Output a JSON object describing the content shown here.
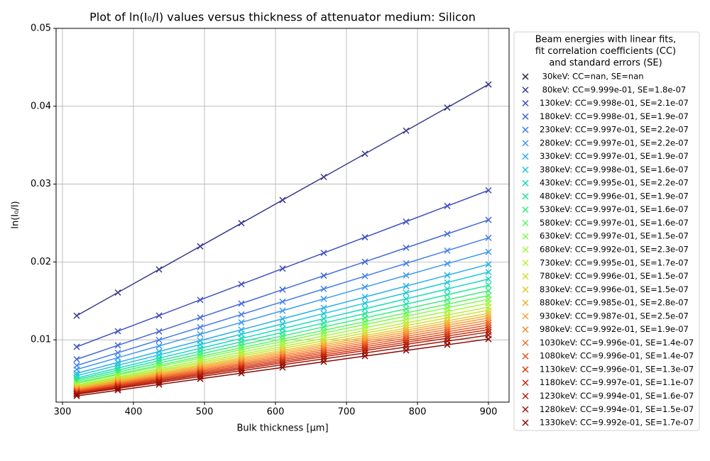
{
  "chart_data": {
    "type": "line",
    "title": "Plot of ln(I₀/I) values versus thickness of attenuator medium: Silicon",
    "xlabel": "Bulk thickness [μm]",
    "ylabel": "ln(I₀/I)",
    "legend_title": [
      "Beam energies with linear fits,",
      "fit correlation coefficients (CC)",
      "and standard errors (SE)"
    ],
    "legend": "outside-right",
    "grid": true,
    "xlim": [
      291,
      929
    ],
    "xticks": [
      300,
      400,
      500,
      600,
      700,
      800,
      900
    ],
    "ylim": [
      0.002,
      0.05
    ],
    "yticks": [
      0.01,
      0.02,
      0.03,
      0.04,
      0.05
    ],
    "x": [
      320,
      378,
      436,
      494,
      552,
      610,
      668,
      726,
      784,
      842,
      900
    ],
    "series": [
      {
        "name": " 30keV: CC=nan, SE=nan",
        "color": "#2d1e3e",
        "values": [
          null,
          null,
          null,
          null,
          null,
          null,
          null,
          null,
          null,
          null,
          null
        ]
      },
      {
        "name": " 80keV: CC=9.999e-01, SE=1.8e-07",
        "color": "#3a3a8c",
        "values": [
          0.0131,
          0.01607,
          0.01904,
          0.02201,
          0.02498,
          0.02795,
          0.03092,
          0.03389,
          0.03686,
          0.03983,
          0.0428
        ]
      },
      {
        "name": "130keV: CC=9.998e-01, SE=2.1e-07",
        "color": "#4050c0",
        "values": [
          0.0091,
          0.01111,
          0.01312,
          0.01513,
          0.01714,
          0.01915,
          0.02116,
          0.02317,
          0.02518,
          0.02719,
          0.0292
        ]
      },
      {
        "name": "180keV: CC=9.998e-01, SE=1.9e-07",
        "color": "#4468d8",
        "values": [
          0.0075,
          0.00929,
          0.01108,
          0.01287,
          0.01466,
          0.01645,
          0.01824,
          0.02003,
          0.02182,
          0.02361,
          0.0254
        ]
      },
      {
        "name": "230keV: CC=9.997e-01, SE=2.2e-07",
        "color": "#4680e8",
        "values": [
          0.0067,
          0.00834,
          0.00998,
          0.01162,
          0.01326,
          0.0149,
          0.01654,
          0.01818,
          0.01982,
          0.02146,
          0.0231
        ]
      },
      {
        "name": "280keV: CC=9.997e-01, SE=2.2e-07",
        "color": "#3e98f0",
        "values": [
          0.0062,
          0.00771,
          0.00922,
          0.01073,
          0.01224,
          0.01375,
          0.01526,
          0.01677,
          0.01828,
          0.01979,
          0.0213
        ]
      },
      {
        "name": "330keV: CC=9.997e-01, SE=1.9e-07",
        "color": "#28b0e8",
        "values": [
          0.0057,
          0.0071,
          0.0085,
          0.0099,
          0.0113,
          0.0127,
          0.0141,
          0.0155,
          0.0169,
          0.0183,
          0.0197
        ]
      },
      {
        "name": "380keV: CC=9.998e-01, SE=1.6e-07",
        "color": "#1ec8d8",
        "values": [
          0.0054,
          0.00673,
          0.00806,
          0.00939,
          0.01072,
          0.01205,
          0.01338,
          0.01471,
          0.01604,
          0.01737,
          0.0187
        ]
      },
      {
        "name": "430keV: CC=9.995e-01, SE=2.2e-07",
        "color": "#1ad8c0",
        "values": [
          0.0051,
          0.00637,
          0.00764,
          0.00891,
          0.01018,
          0.01145,
          0.01272,
          0.01399,
          0.01526,
          0.01653,
          0.0178
        ]
      },
      {
        "name": "480keV: CC=9.996e-01, SE=1.9e-07",
        "color": "#24e4a0",
        "values": [
          0.0049,
          0.00611,
          0.00732,
          0.00853,
          0.00974,
          0.01095,
          0.01216,
          0.01337,
          0.01458,
          0.01579,
          0.017
        ]
      },
      {
        "name": "530keV: CC=9.997e-01, SE=1.6e-07",
        "color": "#3cec80",
        "values": [
          0.0047,
          0.00586,
          0.00702,
          0.00818,
          0.00934,
          0.0105,
          0.01166,
          0.01282,
          0.01398,
          0.01514,
          0.0163
        ]
      },
      {
        "name": "580keV: CC=9.997e-01, SE=1.6e-07",
        "color": "#5cf464",
        "values": [
          0.0045,
          0.00562,
          0.00674,
          0.00786,
          0.00898,
          0.0101,
          0.01122,
          0.01234,
          0.01346,
          0.01458,
          0.0157
        ]
      },
      {
        "name": "630keV: CC=9.997e-01, SE=1.5e-07",
        "color": "#80fa4c",
        "values": [
          0.0044,
          0.00548,
          0.00656,
          0.00764,
          0.00872,
          0.0098,
          0.01088,
          0.01196,
          0.01304,
          0.01412,
          0.0152
        ]
      },
      {
        "name": "680keV: CC=9.992e-01, SE=2.3e-07",
        "color": "#a0f840",
        "values": [
          0.0042,
          0.00525,
          0.0063,
          0.00735,
          0.0084,
          0.00945,
          0.0105,
          0.01155,
          0.0126,
          0.01365,
          0.0147
        ]
      },
      {
        "name": "730keV: CC=9.995e-01, SE=1.7e-07",
        "color": "#bcee38",
        "values": [
          0.0041,
          0.00511,
          0.00612,
          0.00713,
          0.00814,
          0.00915,
          0.01016,
          0.01117,
          0.01218,
          0.01319,
          0.0142
        ]
      },
      {
        "name": "780keV: CC=9.996e-01, SE=1.5e-07",
        "color": "#d0e034",
        "values": [
          0.004,
          0.00498,
          0.00596,
          0.00694,
          0.00792,
          0.0089,
          0.00988,
          0.01086,
          0.01184,
          0.01282,
          0.0138
        ]
      },
      {
        "name": "830keV: CC=9.996e-01, SE=1.5e-07",
        "color": "#e4cc34",
        "values": [
          0.0039,
          0.00485,
          0.0058,
          0.00675,
          0.0077,
          0.00865,
          0.0096,
          0.01055,
          0.0115,
          0.01245,
          0.0134
        ]
      },
      {
        "name": "880keV: CC=9.985e-01, SE=2.8e-07",
        "color": "#f0b434",
        "values": [
          0.0038,
          0.00473,
          0.00566,
          0.00659,
          0.00752,
          0.00845,
          0.00938,
          0.01031,
          0.01124,
          0.01217,
          0.0131
        ]
      },
      {
        "name": "930keV: CC=9.987e-01, SE=2.5e-07",
        "color": "#f8a034",
        "values": [
          0.0037,
          0.00461,
          0.00552,
          0.00643,
          0.00734,
          0.00825,
          0.00916,
          0.01007,
          0.01098,
          0.01189,
          0.0128
        ]
      },
      {
        "name": "980keV: CC=9.992e-01, SE=1.9e-07",
        "color": "#f88a30",
        "values": [
          0.0036,
          0.00449,
          0.00538,
          0.00627,
          0.00716,
          0.00805,
          0.00894,
          0.00983,
          0.01072,
          0.01161,
          0.0125
        ]
      },
      {
        "name": "1030keV: CC=9.996e-01, SE=1.4e-07",
        "color": "#f0702a",
        "values": [
          0.0035,
          0.00437,
          0.00524,
          0.00611,
          0.00698,
          0.00785,
          0.00872,
          0.00959,
          0.01046,
          0.01133,
          0.0122
        ]
      },
      {
        "name": "1080keV: CC=9.996e-01, SE=1.4e-07",
        "color": "#e85a20",
        "values": [
          0.0034,
          0.00425,
          0.0051,
          0.00595,
          0.0068,
          0.00765,
          0.0085,
          0.00935,
          0.0102,
          0.01105,
          0.0119
        ]
      },
      {
        "name": "1130keV: CC=9.996e-01, SE=1.3e-07",
        "color": "#dc4418",
        "values": [
          0.0033,
          0.00413,
          0.00496,
          0.00579,
          0.00662,
          0.00745,
          0.00828,
          0.00911,
          0.00994,
          0.01077,
          0.0116
        ]
      },
      {
        "name": "1180keV: CC=9.997e-01, SE=1.1e-07",
        "color": "#cc3010",
        "values": [
          0.0032,
          0.00401,
          0.00482,
          0.00563,
          0.00644,
          0.00725,
          0.00806,
          0.00887,
          0.00968,
          0.01049,
          0.0113
        ]
      },
      {
        "name": "1230keV: CC=9.994e-01, SE=1.6e-07",
        "color": "#b8200a",
        "values": [
          0.0031,
          0.00389,
          0.00468,
          0.00547,
          0.00626,
          0.00705,
          0.00784,
          0.00863,
          0.00942,
          0.01021,
          0.011
        ]
      },
      {
        "name": "1280keV: CC=9.994e-01, SE=1.5e-07",
        "color": "#a01406",
        "values": [
          0.003,
          0.00376,
          0.00452,
          0.00528,
          0.00604,
          0.0068,
          0.00756,
          0.00832,
          0.00908,
          0.00984,
          0.0106
        ]
      },
      {
        "name": "1330keV: CC=9.992e-01, SE=1.7e-07",
        "color": "#880a04",
        "values": [
          0.0028,
          0.00353,
          0.00426,
          0.00499,
          0.00572,
          0.00645,
          0.00718,
          0.00791,
          0.00864,
          0.00937,
          0.0101
        ]
      }
    ]
  }
}
